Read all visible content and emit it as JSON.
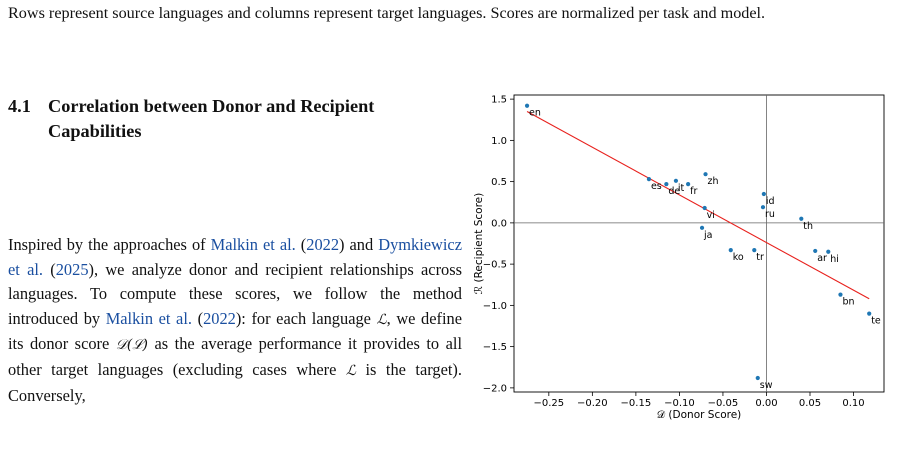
{
  "caption_tail": "Rows represent source languages and columns represent target languages. Scores are normalized per task and model.",
  "section": {
    "number": "4.1",
    "title": "Correlation between Donor and Recipient Capabilities"
  },
  "paragraph": {
    "s1": "Inspired by the approaches of ",
    "cite1": "Malkin et al.",
    "s2": " (",
    "cite1_year": "2022",
    "s3": ") and ",
    "cite2": "Dymkiewicz et al.",
    "s4": " (",
    "cite2_year": "2025",
    "s5": "), we analyze donor and recipient relationships across languages. To compute these scores, we follow the method introduced by ",
    "cite3": "Malkin et al.",
    "s6": " (",
    "cite3_year": "2022",
    "s7": "): for each language ",
    "m1": "ℒ",
    "s8": ", we define its donor score ",
    "m2": "𝒟(ℒ)",
    "s9": " as the average performance it provides to all other target languages (excluding cases where ",
    "m3": "ℒ",
    "s10": " is the target). Conversely,"
  },
  "chart_data": {
    "type": "scatter",
    "xlabel": "𝒟 (Donor Score)",
    "ylabel": "ℛ (Recipient Score)",
    "xlim": [
      -0.29,
      0.135
    ],
    "ylim": [
      -2.05,
      1.55
    ],
    "xticks": [
      -0.25,
      -0.2,
      -0.15,
      -0.1,
      -0.05,
      0.0,
      0.05,
      0.1
    ],
    "xtick_labels": [
      "−0.25",
      "−0.20",
      "−0.15",
      "−0.10",
      "−0.05",
      "0.00",
      "0.05",
      "0.10"
    ],
    "yticks": [
      1.5,
      1.0,
      0.5,
      0.0,
      -0.5,
      -1.0,
      -1.5,
      -2.0
    ],
    "ytick_labels": [
      "1.5",
      "1.0",
      "0.5",
      "0.0",
      "−0.5",
      "−1.0",
      "−1.5",
      "−2.0"
    ],
    "grid": false,
    "reference_lines": {
      "x": 0.0,
      "y": 0.0
    },
    "point_color": "#1f77b4",
    "line_color": "#e8211d",
    "points": [
      {
        "label": "en",
        "x": -0.275,
        "y": 1.42
      },
      {
        "label": "es",
        "x": -0.135,
        "y": 0.53
      },
      {
        "label": "de",
        "x": -0.115,
        "y": 0.47
      },
      {
        "label": "it",
        "x": -0.104,
        "y": 0.51
      },
      {
        "label": "fr",
        "x": -0.09,
        "y": 0.47
      },
      {
        "label": "zh",
        "x": -0.07,
        "y": 0.59
      },
      {
        "label": "vi",
        "x": -0.071,
        "y": 0.18
      },
      {
        "label": "ja",
        "x": -0.074,
        "y": -0.06
      },
      {
        "label": "ko",
        "x": -0.041,
        "y": -0.33
      },
      {
        "label": "tr",
        "x": -0.014,
        "y": -0.33
      },
      {
        "label": "sw",
        "x": -0.01,
        "y": -1.88
      },
      {
        "label": "id",
        "x": -0.003,
        "y": 0.35
      },
      {
        "label": "ru",
        "x": -0.004,
        "y": 0.19
      },
      {
        "label": "th",
        "x": 0.04,
        "y": 0.05
      },
      {
        "label": "ar",
        "x": 0.056,
        "y": -0.34
      },
      {
        "label": "hi",
        "x": 0.071,
        "y": -0.35
      },
      {
        "label": "bn",
        "x": 0.085,
        "y": -0.87
      },
      {
        "label": "te",
        "x": 0.118,
        "y": -1.1
      }
    ],
    "fit_line": {
      "x": [
        -0.275,
        0.118
      ],
      "y": [
        1.35,
        -0.92
      ]
    }
  }
}
